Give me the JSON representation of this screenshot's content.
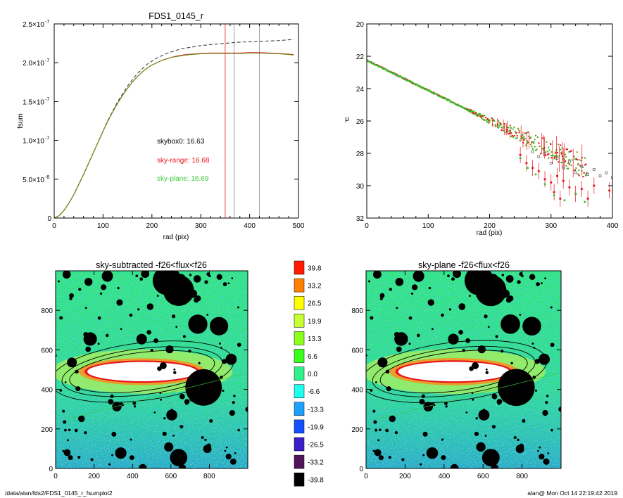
{
  "footer": {
    "left": "/data/alan/fds2/FDS1_0145_r_fsumplot2",
    "right": "alan@  Mon Oct 14 22:19:42 2019"
  },
  "colorbar": {
    "labels": [
      "39.8",
      "33.2",
      "26.5",
      "19.9",
      "13.3",
      "6.6",
      "0.0",
      "-6.6",
      "-13.3",
      "-19.9",
      "-26.5",
      "-33.2",
      "-39.8"
    ],
    "colors": [
      "#ff1a00",
      "#ff7f00",
      "#ffff00",
      "#c8ff32",
      "#8cff1e",
      "#3cff1e",
      "#32f08c",
      "#1effee",
      "#1ea0ff",
      "#1450ff",
      "#3c1ec8",
      "#50145a",
      "#000000"
    ]
  },
  "chart_data": [
    {
      "type": "line",
      "title": "FDS1_0145_r",
      "xlabel": "rad (pix)",
      "ylabel": "fsum",
      "xlim": [
        0,
        500
      ],
      "ylim": [
        0,
        2.5e-07
      ],
      "xticks": [
        "0",
        "100",
        "200",
        "300",
        "400",
        "500"
      ],
      "yticks": [
        {
          "v": 0,
          "m": "0",
          "e": ""
        },
        {
          "v": 5e-08,
          "m": "5.0×10",
          "e": "-8"
        },
        {
          "v": 1e-07,
          "m": "1.0×10",
          "e": "-7"
        },
        {
          "v": 1.5e-07,
          "m": "1.5×10",
          "e": "-7"
        },
        {
          "v": 2e-07,
          "m": "2.0×10",
          "e": "-7"
        },
        {
          "v": 2.5e-07,
          "m": "2.5×10",
          "e": "-7"
        }
      ],
      "annotations": [
        {
          "text": "skybox0: 16.63",
          "color": "#000000"
        },
        {
          "text": "sky-range: 16.68",
          "color": "#e8141e"
        },
        {
          "text": "sky-plane: 16.69",
          "color": "#3cc83c"
        }
      ],
      "vlines": [
        {
          "x": 350,
          "color": "#e8141e"
        },
        {
          "x": 368,
          "color": "#888888"
        },
        {
          "x": 420,
          "color": "#888888"
        }
      ],
      "series": [
        {
          "color": "#444444",
          "dash": true,
          "x": [
            0,
            10,
            20,
            30,
            40,
            50,
            60,
            70,
            80,
            90,
            100,
            110,
            120,
            130,
            140,
            150,
            160,
            170,
            180,
            190,
            200,
            210,
            220,
            230,
            240,
            250,
            260,
            270,
            280,
            290,
            300,
            320,
            340,
            360,
            380,
            400,
            420,
            440,
            460,
            480,
            490
          ],
          "y": [
            0,
            3e-09,
            1e-08,
            1.9e-08,
            3e-08,
            4.3e-08,
            5.6e-08,
            7e-08,
            8.4e-08,
            9.8e-08,
            1.12e-07,
            1.26e-07,
            1.38e-07,
            1.5e-07,
            1.6e-07,
            1.7e-07,
            1.78e-07,
            1.86e-07,
            1.92e-07,
            1.98e-07,
            2.02e-07,
            2.06e-07,
            2.09e-07,
            2.12e-07,
            2.14e-07,
            2.16e-07,
            2.18e-07,
            2.19e-07,
            2.2e-07,
            2.21e-07,
            2.22e-07,
            2.235e-07,
            2.245e-07,
            2.255e-07,
            2.265e-07,
            2.27e-07,
            2.275e-07,
            2.28e-07,
            2.285e-07,
            2.295e-07,
            2.3e-07
          ]
        },
        {
          "color": "#e8141e",
          "dash": false,
          "x": [
            0,
            10,
            20,
            30,
            40,
            50,
            60,
            70,
            80,
            90,
            100,
            110,
            120,
            130,
            140,
            150,
            160,
            170,
            180,
            190,
            200,
            210,
            220,
            230,
            240,
            250,
            260,
            270,
            280,
            290,
            300,
            320,
            340,
            360,
            380,
            400,
            420,
            440,
            460,
            480,
            490
          ],
          "y": [
            0,
            3e-09,
            1e-08,
            1.9e-08,
            3e-08,
            4.3e-08,
            5.6e-08,
            7e-08,
            8.4e-08,
            9.8e-08,
            1.12e-07,
            1.25e-07,
            1.37e-07,
            1.48e-07,
            1.58e-07,
            1.67e-07,
            1.75e-07,
            1.82e-07,
            1.88e-07,
            1.93e-07,
            1.97e-07,
            2e-07,
            2.03e-07,
            2.05e-07,
            2.07e-07,
            2.085e-07,
            2.095e-07,
            2.105e-07,
            2.11e-07,
            2.115e-07,
            2.12e-07,
            2.125e-07,
            2.125e-07,
            2.125e-07,
            2.125e-07,
            2.13e-07,
            2.13e-07,
            2.125e-07,
            2.12e-07,
            2.11e-07,
            2.105e-07
          ]
        },
        {
          "color": "#6a8a14",
          "dash": false,
          "x": [
            0,
            10,
            20,
            30,
            40,
            50,
            60,
            70,
            80,
            90,
            100,
            110,
            120,
            130,
            140,
            150,
            160,
            170,
            180,
            190,
            200,
            210,
            220,
            230,
            240,
            250,
            260,
            270,
            280,
            290,
            300,
            320,
            340,
            360,
            380,
            400,
            420,
            440,
            460,
            480,
            490
          ],
          "y": [
            0,
            3e-09,
            1e-08,
            1.9e-08,
            3e-08,
            4.3e-08,
            5.6e-08,
            7e-08,
            8.4e-08,
            9.8e-08,
            1.12e-07,
            1.25e-07,
            1.37e-07,
            1.48e-07,
            1.58e-07,
            1.67e-07,
            1.75e-07,
            1.82e-07,
            1.88e-07,
            1.93e-07,
            1.97e-07,
            2e-07,
            2.03e-07,
            2.05e-07,
            2.07e-07,
            2.08e-07,
            2.09e-07,
            2.1e-07,
            2.105e-07,
            2.11e-07,
            2.115e-07,
            2.12e-07,
            2.12e-07,
            2.12e-07,
            2.12e-07,
            2.125e-07,
            2.125e-07,
            2.12e-07,
            2.115e-07,
            2.105e-07,
            2.1e-07
          ]
        }
      ]
    },
    {
      "type": "scatter",
      "title": "",
      "xlabel": "rad (pix)",
      "ylabel": "μ",
      "xlim": [
        0,
        400
      ],
      "ylim": [
        32,
        20
      ],
      "xticks": [
        "0",
        "100",
        "200",
        "300",
        "400"
      ],
      "yticks": [
        "20",
        "22",
        "24",
        "26",
        "28",
        "30",
        "32"
      ],
      "profile": {
        "mu0": 22.25,
        "slope": 0.0186,
        "x_end": 360
      },
      "outer_points": {
        "grey": [
          [
            270,
            27.9
          ],
          [
            280,
            28.2
          ],
          [
            290,
            28.0
          ],
          [
            300,
            28.6
          ],
          [
            310,
            28.3
          ],
          [
            320,
            28.9
          ],
          [
            330,
            28.5
          ],
          [
            340,
            29.2
          ],
          [
            350,
            28.8
          ],
          [
            360,
            29.3
          ],
          [
            370,
            29.0
          ],
          [
            380,
            29.4
          ],
          [
            390,
            29.2
          ],
          [
            400,
            29.5
          ]
        ],
        "red": [
          [
            250,
            28.1
          ],
          [
            260,
            28.6
          ],
          [
            270,
            28.9
          ],
          [
            280,
            29.1
          ],
          [
            290,
            29.6
          ],
          [
            300,
            29.8
          ],
          [
            305,
            30.4
          ],
          [
            310,
            29.4
          ],
          [
            315,
            30.8
          ],
          [
            320,
            29.7
          ],
          [
            330,
            30.1
          ],
          [
            340,
            30.5
          ],
          [
            350,
            30.2
          ],
          [
            360,
            30.8
          ],
          [
            370,
            30.0
          ],
          [
            395,
            30.3
          ]
        ],
        "green": [
          [
            250,
            28.3
          ],
          [
            262,
            28.9
          ],
          [
            275,
            29.3
          ],
          [
            290,
            29.9
          ],
          [
            305,
            30.6
          ],
          [
            322,
            30.9
          ],
          [
            340,
            30.5
          ],
          [
            355,
            31.0
          ]
        ]
      }
    },
    {
      "type": "heatmap",
      "title": "sky-subtracted -f26<flux<f26",
      "xlim": [
        0,
        1000
      ],
      "ylim": [
        0,
        1000
      ],
      "xticks": [
        "0",
        "200",
        "400",
        "600",
        "800"
      ],
      "yticks": [
        "0",
        "200",
        "400",
        "600",
        "800"
      ]
    },
    {
      "type": "heatmap",
      "title": "sky-plane -f26<flux<f26",
      "xlim": [
        0,
        1000
      ],
      "ylim": [
        0,
        1000
      ],
      "xticks": [
        "0",
        "200",
        "400",
        "600",
        "800"
      ],
      "yticks": [
        "0",
        "200",
        "400",
        "600",
        "800"
      ]
    }
  ]
}
